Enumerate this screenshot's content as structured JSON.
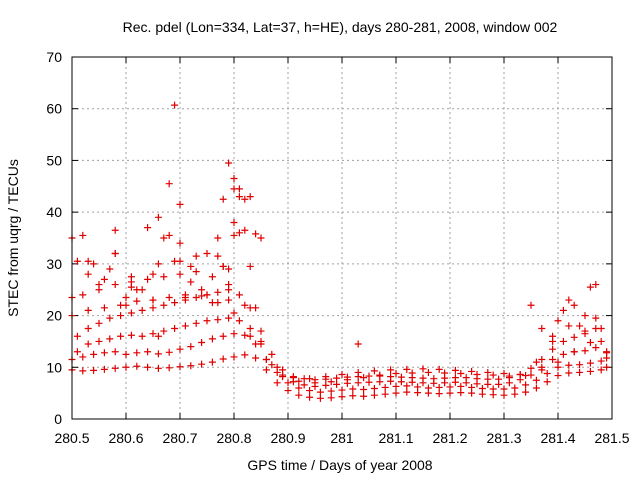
{
  "chart_data": {
    "type": "scatter",
    "title": "Rec. pdel (Lon=334, Lat=37, h=HE), days 280-281, 2008, window 002",
    "xlabel": "GPS time / Days of year 2008",
    "ylabel": "STEC from uqrg / TECUs",
    "xlim": [
      280.5,
      281.5
    ],
    "ylim": [
      0,
      70
    ],
    "x_ticks": [
      280.5,
      280.6,
      280.7,
      280.8,
      280.9,
      281,
      281.1,
      281.2,
      281.3,
      281.4,
      281.5
    ],
    "x_tick_labels": [
      "280.5",
      "280.6",
      "280.7",
      "280.8",
      "280.9",
      "281",
      "281.1",
      "281.2",
      "281.3",
      "281.4",
      "281.5"
    ],
    "y_ticks": [
      0,
      10,
      20,
      30,
      40,
      50,
      60,
      70
    ],
    "y_tick_labels": [
      "0",
      "10",
      "20",
      "30",
      "40",
      "50",
      "60",
      "70"
    ],
    "grid": true,
    "marker": "+",
    "color": "#e00000",
    "series": [
      {
        "x": [
          280.5,
          280.52,
          280.54,
          280.56,
          280.58,
          280.6,
          280.62,
          280.64,
          280.66,
          280.68,
          280.7,
          280.72,
          280.74,
          280.76,
          280.78,
          280.8,
          280.82,
          280.84,
          280.86,
          280.88,
          280.9,
          280.92,
          280.94,
          280.96,
          280.98,
          281.0,
          281.02,
          281.04,
          281.06,
          281.08,
          281.1,
          281.12,
          281.14,
          281.16,
          281.18,
          281.2,
          281.22,
          281.24,
          281.26,
          281.28,
          281.3,
          281.32,
          281.34,
          281.36,
          281.38,
          281.4,
          281.42,
          281.44,
          281.46,
          281.48,
          280.5,
          280.52,
          280.54,
          280.56,
          280.58,
          280.6,
          280.62,
          280.64,
          280.66,
          280.68,
          280.7,
          280.72,
          280.74,
          280.76,
          280.78,
          280.8,
          280.82,
          280.84,
          280.86,
          280.88,
          280.9,
          280.92,
          280.94,
          280.96,
          280.98,
          281.0,
          281.02,
          281.04,
          281.06,
          281.08,
          281.1,
          281.12,
          281.14,
          281.16,
          281.18,
          281.2,
          281.22,
          281.24,
          281.26,
          281.28,
          281.3,
          281.32,
          281.34,
          281.36,
          281.38,
          281.4,
          281.42,
          281.44,
          281.46,
          281.48,
          280.51,
          280.53,
          280.55,
          280.57,
          280.59,
          280.61,
          280.63,
          280.65,
          280.67,
          280.69,
          280.71,
          280.73,
          280.75,
          280.77,
          280.79,
          280.81,
          280.83,
          280.85,
          280.87,
          280.89,
          280.91,
          280.93,
          280.95,
          280.97,
          280.99,
          281.01,
          281.03,
          281.05,
          281.07,
          281.09,
          281.11,
          281.13,
          281.15,
          281.17,
          281.19,
          281.21,
          281.23,
          281.25,
          281.27,
          281.29,
          281.31,
          281.33,
          281.35,
          281.37,
          281.39,
          281.41,
          281.43,
          281.45,
          281.47,
          281.49,
          280.51,
          280.53,
          280.55,
          280.57,
          280.59,
          280.61,
          280.63,
          280.65,
          280.67,
          280.69,
          280.71,
          280.73,
          280.75,
          280.77,
          280.79,
          280.81,
          280.83,
          280.85,
          280.87,
          280.89,
          280.91,
          280.93,
          280.95,
          280.97,
          280.99,
          281.01,
          281.03,
          281.05,
          281.07,
          281.09,
          281.11,
          281.13,
          281.15,
          281.17,
          281.19,
          281.21,
          281.23,
          281.25,
          281.27,
          281.29,
          281.31,
          281.33,
          281.35,
          281.37,
          281.39,
          281.41,
          281.43,
          281.45,
          281.47,
          281.49,
          280.5,
          280.53,
          280.56,
          280.59,
          280.62,
          280.65,
          280.68,
          280.71,
          280.74,
          280.77,
          280.8,
          280.83,
          280.86,
          280.89,
          280.92,
          280.95,
          280.98,
          281.01,
          281.04,
          281.07,
          281.1,
          281.13,
          281.16,
          281.19,
          281.22,
          281.25,
          281.28,
          281.31,
          281.34,
          281.37,
          281.4,
          281.43,
          281.46,
          281.49,
          280.52,
          280.55,
          280.58,
          280.61,
          280.64,
          280.67,
          280.7,
          280.73,
          280.76,
          280.79,
          280.82,
          280.85,
          280.88,
          280.91,
          280.94,
          280.97,
          281.0,
          281.03,
          281.06,
          281.09,
          281.12,
          281.15,
          281.18,
          281.21,
          281.24,
          281.27,
          281.3,
          281.33,
          281.36,
          281.39,
          281.42,
          281.45,
          281.48,
          280.5,
          280.53,
          280.56,
          280.58,
          280.61,
          280.63,
          280.66,
          280.68,
          280.7,
          280.72,
          280.75,
          280.77,
          280.79,
          280.8,
          280.81,
          280.83,
          280.85,
          281.4,
          281.43,
          281.45,
          281.47,
          281.49,
          280.51,
          280.54,
          280.57,
          280.6,
          280.62,
          280.65,
          280.67,
          280.69,
          280.71,
          280.74,
          280.76,
          280.78,
          280.79,
          280.8,
          280.82,
          280.84,
          281.03,
          281.37,
          281.42,
          281.44,
          281.46,
          281.48,
          280.52,
          280.55,
          280.58,
          280.61,
          280.64,
          280.66,
          280.68,
          280.7,
          280.73,
          280.75,
          280.78,
          280.8,
          280.81,
          280.83,
          281.35,
          281.39,
          281.41,
          281.47,
          280.66,
          280.69,
          280.7,
          280.72,
          280.78,
          280.79,
          280.8,
          280.81,
          280.82,
          280.84,
          280.77,
          280.65,
          280.6,
          280.58,
          280.53,
          280.5
        ],
        "y": [
          9.5,
          9.3,
          9.4,
          9.6,
          9.8,
          10.0,
          10.2,
          10.0,
          9.8,
          9.9,
          10.1,
          10.3,
          10.6,
          11.0,
          11.6,
          12.0,
          12.4,
          11.8,
          9.5,
          7.0,
          5.5,
          4.6,
          4.2,
          4.0,
          4.1,
          4.3,
          4.5,
          4.4,
          4.6,
          4.8,
          5.0,
          5.2,
          5.1,
          5.0,
          4.9,
          5.0,
          5.1,
          5.0,
          4.8,
          4.7,
          4.6,
          4.8,
          5.2,
          6.0,
          7.2,
          8.4,
          8.9,
          9.0,
          9.2,
          9.5,
          11.5,
          12.0,
          12.5,
          12.8,
          13.0,
          12.5,
          12.8,
          13.0,
          12.6,
          12.9,
          13.5,
          14.0,
          14.8,
          15.5,
          16.0,
          16.5,
          16.2,
          14.5,
          11.5,
          9.0,
          7.0,
          6.0,
          5.5,
          5.2,
          5.4,
          5.6,
          5.8,
          5.7,
          5.9,
          6.1,
          6.3,
          6.4,
          6.2,
          6.0,
          6.1,
          6.2,
          6.3,
          6.1,
          5.9,
          5.8,
          5.8,
          6.0,
          6.6,
          7.5,
          8.8,
          10.0,
          10.4,
          10.5,
          10.8,
          11.2,
          13.0,
          14.5,
          15.0,
          15.5,
          16.0,
          16.2,
          16.0,
          16.5,
          17.0,
          17.5,
          18.0,
          18.5,
          19.0,
          19.2,
          19.5,
          19.0,
          17.5,
          14.5,
          10.5,
          8.2,
          7.2,
          6.6,
          6.3,
          6.5,
          6.7,
          6.9,
          7.0,
          7.1,
          7.2,
          7.3,
          7.2,
          7.1,
          7.0,
          6.9,
          7.0,
          7.1,
          7.0,
          6.8,
          6.7,
          6.7,
          7.0,
          7.6,
          8.5,
          10.0,
          11.5,
          12.5,
          13.0,
          13.2,
          13.8,
          12.8,
          16.0,
          17.5,
          18.5,
          19.5,
          20.0,
          20.5,
          21.0,
          21.5,
          22.0,
          22.5,
          23.0,
          23.5,
          24.0,
          24.5,
          25.0,
          24.0,
          21.5,
          17.0,
          12.5,
          9.5,
          8.2,
          7.8,
          7.6,
          7.7,
          7.9,
          8.1,
          8.2,
          8.3,
          8.3,
          8.2,
          8.1,
          8.0,
          7.9,
          7.8,
          7.9,
          8.0,
          8.0,
          7.8,
          7.7,
          7.7,
          8.0,
          8.6,
          9.8,
          11.5,
          13.5,
          15.0,
          15.8,
          16.5,
          17.5,
          11.8,
          20.0,
          21.0,
          21.5,
          22.0,
          22.8,
          23.0,
          23.5,
          24.0,
          23.8,
          22.5,
          20.5,
          16.0,
          11.5,
          8.5,
          7.3,
          7.0,
          7.2,
          7.6,
          8.0,
          8.5,
          8.8,
          8.9,
          9.0,
          8.9,
          8.8,
          8.6,
          8.5,
          8.3,
          8.4,
          9.5,
          11.0,
          13.0,
          14.8,
          10.0,
          24.0,
          25.0,
          26.0,
          26.5,
          27.0,
          27.5,
          28.0,
          28.5,
          27.5,
          26.0,
          22.0,
          15.0,
          10.0,
          8.0,
          7.8,
          8.2,
          8.6,
          9.0,
          9.3,
          9.5,
          9.6,
          9.7,
          9.6,
          9.4,
          9.2,
          9.0,
          8.8,
          8.6,
          11.0,
          15.0,
          18.0,
          20.0,
          15.0,
          23.5,
          30.5,
          27.0,
          36.5,
          27.5,
          25.0,
          30.0,
          45.5,
          34.0,
          29.5,
          32.0,
          35.0,
          29.0,
          38.0,
          43.0,
          29.5,
          35.0,
          19.0,
          22.0,
          17.0,
          19.5,
          13.0,
          30.5,
          30.0,
          29.0,
          23.5,
          25.0,
          28.0,
          35.0,
          30.5,
          23.5,
          25.0,
          22.5,
          29.5,
          23.0,
          46.5,
          42.5,
          21.5,
          14.5,
          17.5,
          23.0,
          18.0,
          25.5,
          17.5,
          35.5,
          26.0,
          32.0,
          25.5,
          37.0,
          39.0,
          35.5,
          41.5,
          31.5,
          24.0,
          42.5,
          44.5,
          36.0,
          43.0,
          22.0,
          16.0,
          21.0,
          26.0,
          16.0,
          60.7,
          30.5,
          26.5,
          29.5,
          49.5,
          35.5,
          44.5,
          36.5,
          35.8,
          31.5,
          23.0,
          22.0,
          32.0,
          28.0,
          35.0
        ]
      }
    ]
  }
}
